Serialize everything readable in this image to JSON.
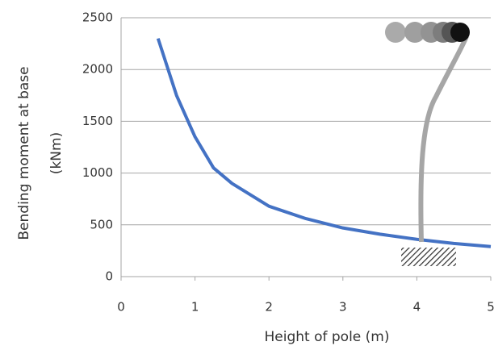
{
  "chart_data": {
    "type": "line",
    "x_label": "Height of pole (m)",
    "y_label": [
      "Bending moment  at base",
      "(kNm)"
    ],
    "x": [
      0.5,
      0.75,
      1,
      1.25,
      1.5,
      2,
      2.5,
      3,
      3.5,
      4,
      4.5,
      5
    ],
    "series": [
      {
        "color": "#4472c4",
        "values": [
          2300,
          1750,
          1350,
          1050,
          900,
          680,
          560,
          470,
          410,
          360,
          320,
          290
        ]
      }
    ],
    "xlim": [
      0,
      5
    ],
    "xticks": [
      0,
      1,
      2,
      3,
      4,
      5
    ],
    "ylim": [
      0,
      2500
    ],
    "yticks": [
      0,
      500,
      1000,
      1500,
      2000,
      2500
    ],
    "grid": true
  }
}
